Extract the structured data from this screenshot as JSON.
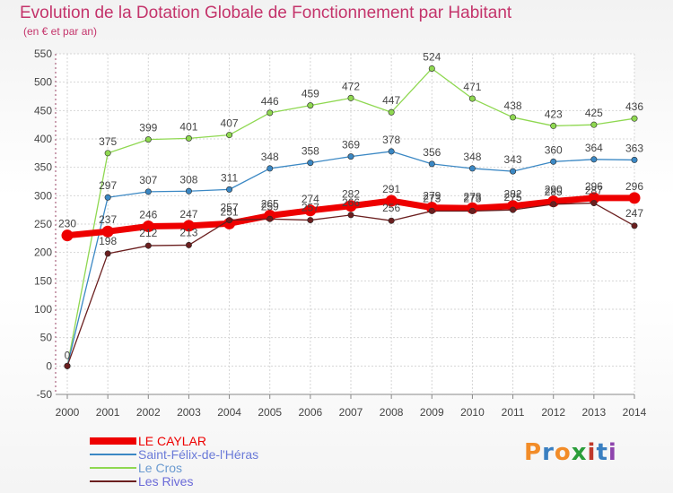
{
  "header": {
    "title": "Evolution de la Dotation Globale de Fonctionnement par Habitant",
    "subtitle": "(en € et par an)"
  },
  "brand": {
    "letters": [
      "P",
      "r",
      "o",
      "x",
      "i",
      "t",
      "i"
    ],
    "colors": [
      "#f28c28",
      "#3a7fc1",
      "#f28c28",
      "#2a9d3a",
      "#c0392b",
      "#3a7fc1",
      "#8e44ad"
    ]
  },
  "chart_data": {
    "type": "line",
    "title": "Evolution de la Dotation Globale de Fonctionnement par Habitant",
    "subtitle": "(en € et par an)",
    "x": [
      "2000",
      "2001",
      "2002",
      "2003",
      "2004",
      "2005",
      "2006",
      "2007",
      "2008",
      "2009",
      "2010",
      "2011",
      "2012",
      "2013",
      "2014"
    ],
    "ylim": [
      -50,
      550
    ],
    "yticks": [
      "-50",
      "0",
      "50",
      "100",
      "150",
      "200",
      "250",
      "300",
      "350",
      "400",
      "450",
      "500",
      "550"
    ],
    "grid": true,
    "legend_position": "bottom-left",
    "series": [
      {
        "name": "LE CAYLAR",
        "color": "#ee0000",
        "values": [
          230,
          237,
          246,
          247,
          251,
          265,
          274,
          282,
          291,
          279,
          278,
          282,
          290,
          296,
          296
        ],
        "labels": [
          "230",
          "237",
          "246",
          "247",
          "251",
          "265",
          "274",
          "282",
          "291",
          "279",
          "278",
          "282",
          "290",
          "296",
          "296"
        ]
      },
      {
        "name": "Saint-Félix-de-l'Héras",
        "color": "#3b88c4",
        "values": [
          0,
          297,
          307,
          308,
          311,
          348,
          358,
          369,
          378,
          356,
          348,
          343,
          360,
          364,
          363
        ],
        "labels": [
          "",
          "297",
          "307",
          "308",
          "311",
          "348",
          "358",
          "369",
          "378",
          "356",
          "348",
          "343",
          "360",
          "364",
          "363"
        ]
      },
      {
        "name": "Le Cros",
        "color": "#8fd851",
        "values": [
          0,
          375,
          399,
          401,
          407,
          446,
          459,
          472,
          447,
          524,
          471,
          438,
          423,
          425,
          436
        ],
        "labels": [
          "",
          "375",
          "399",
          "401",
          "407",
          "446",
          "459",
          "472",
          "447",
          "524",
          "471",
          "438",
          "423",
          "425",
          "436"
        ]
      },
      {
        "name": "Les Rives",
        "color": "#6b1f1f",
        "values": [
          0,
          198,
          212,
          213,
          257,
          259,
          257,
          266,
          256,
          273,
          273,
          275,
          285,
          287,
          247
        ],
        "labels": [
          "0",
          "198",
          "212",
          "213",
          "257",
          "259",
          "257",
          "266",
          "256",
          "273",
          "273",
          "275",
          "285",
          "287",
          "247"
        ]
      }
    ]
  }
}
